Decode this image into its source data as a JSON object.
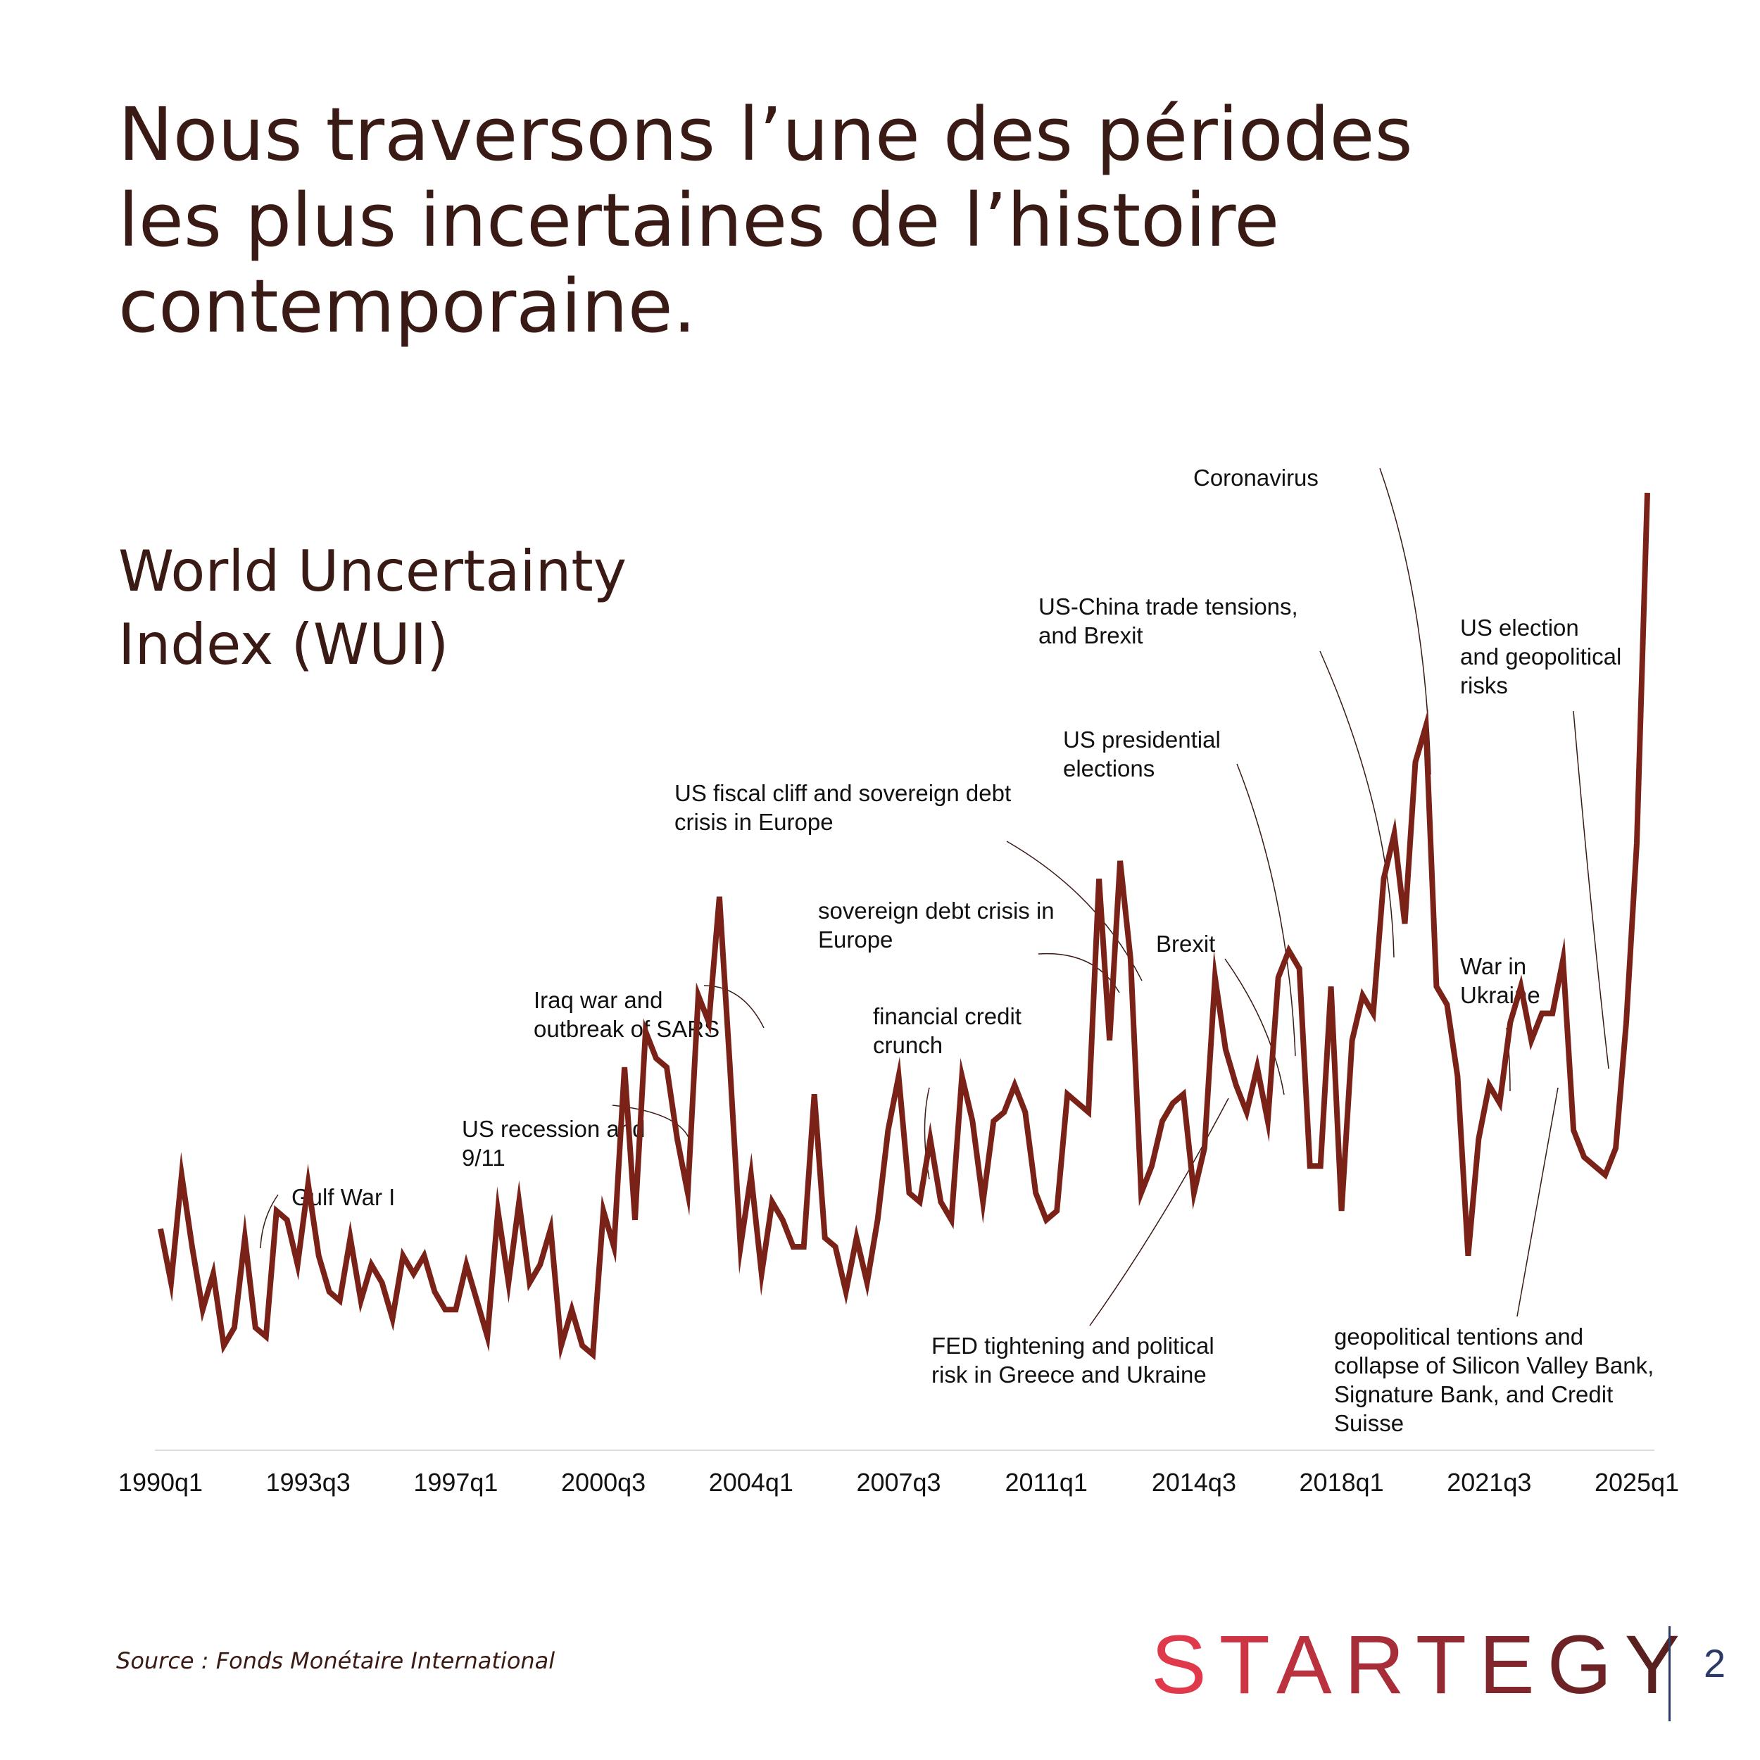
{
  "slide": {
    "title_lines": [
      "Nous traversons l’une des périodes",
      "les plus incertaines de l’histoire",
      "contemporaine."
    ],
    "source": "Source : Fonds Monétaire International",
    "page_number": "2",
    "logo_text": "STARTEGY",
    "colors": {
      "title": "#3a1a14",
      "line": "#7b2218",
      "logo_start": "#e0394b",
      "logo_end": "#5a1f1f",
      "divider": "#2b3a66"
    }
  },
  "chart_data": {
    "type": "line",
    "title_lines": [
      "World Uncertainty",
      "Index (WUI)"
    ],
    "xlabel": "",
    "ylabel": "",
    "tick_labels": [
      "1990q1",
      "1993q3",
      "1997q1",
      "2000q3",
      "2004q1",
      "2007q3",
      "2011q1",
      "2014q3",
      "2018q1",
      "2021q3",
      "2025q1"
    ],
    "grid": false,
    "legend": "none",
    "ylim": [
      0,
      1
    ],
    "series": [
      {
        "values": [
          0.18,
          0.12,
          0.24,
          0.16,
          0.09,
          0.13,
          0.05,
          0.07,
          0.17,
          0.07,
          0.06,
          0.2,
          0.19,
          0.14,
          0.23,
          0.15,
          0.11,
          0.1,
          0.17,
          0.1,
          0.14,
          0.12,
          0.08,
          0.15,
          0.13,
          0.15,
          0.11,
          0.09,
          0.09,
          0.14,
          0.1,
          0.06,
          0.2,
          0.12,
          0.21,
          0.12,
          0.14,
          0.18,
          0.05,
          0.09,
          0.05,
          0.04,
          0.2,
          0.16,
          0.36,
          0.19,
          0.4,
          0.37,
          0.36,
          0.28,
          0.22,
          0.44,
          0.41,
          0.55,
          0.36,
          0.16,
          0.24,
          0.13,
          0.21,
          0.19,
          0.16,
          0.16,
          0.33,
          0.17,
          0.16,
          0.11,
          0.17,
          0.12,
          0.19,
          0.29,
          0.35,
          0.22,
          0.21,
          0.28,
          0.21,
          0.19,
          0.35,
          0.3,
          0.21,
          0.3,
          0.31,
          0.34,
          0.31,
          0.22,
          0.19,
          0.2,
          0.33,
          0.32,
          0.31,
          0.57,
          0.39,
          0.59,
          0.48,
          0.22,
          0.25,
          0.3,
          0.32,
          0.33,
          0.22,
          0.27,
          0.46,
          0.38,
          0.34,
          0.31,
          0.36,
          0.3,
          0.46,
          0.49,
          0.47,
          0.25,
          0.25,
          0.45,
          0.2,
          0.39,
          0.44,
          0.42,
          0.57,
          0.62,
          0.52,
          0.7,
          0.74,
          0.45,
          0.43,
          0.35,
          0.15,
          0.28,
          0.34,
          0.32,
          0.41,
          0.45,
          0.39,
          0.42,
          0.42,
          0.48,
          0.29,
          0.26,
          0.25,
          0.24,
          0.27,
          0.41,
          0.61,
          1.0
        ]
      }
    ],
    "annotations": [
      {
        "index": 7,
        "lines": [
          "Gulf War I"
        ]
      },
      {
        "index": 50,
        "lines": [
          "US recession and",
          "9/11"
        ]
      },
      {
        "index": 58,
        "lines": [
          "Iraq war and",
          "outbreak of SARS"
        ]
      },
      {
        "index": 76,
        "lines": [
          "financial credit",
          "crunch"
        ]
      },
      {
        "index": 94,
        "lines": [
          "sovereign debt crisis in",
          "Europe"
        ]
      },
      {
        "index": 96,
        "lines": [
          "US fiscal cliff and sovereign debt",
          "crisis in Europe"
        ]
      },
      {
        "index": 102,
        "lines": [
          "FED tightening and political",
          "risk in Greece and Ukraine"
        ]
      },
      {
        "index": 108,
        "lines": [
          "Brexit"
        ]
      },
      {
        "index": 109,
        "lines": [
          "US presidential",
          "elections"
        ]
      },
      {
        "index": 118,
        "lines": [
          "US-China trade tensions,",
          "and Brexit"
        ]
      },
      {
        "index": 121,
        "lines": [
          "Coronavirus"
        ]
      },
      {
        "index": 129,
        "lines": [
          "War in",
          "Ukraine"
        ]
      },
      {
        "index": 133,
        "lines": [
          "geopolitical tentions and",
          "collapse of Silicon Valley Bank,",
          "Signature Bank, and Credit",
          "Suisse"
        ]
      },
      {
        "index": 139,
        "lines": [
          "US election",
          "and geopolitical",
          "risks"
        ]
      }
    ]
  }
}
